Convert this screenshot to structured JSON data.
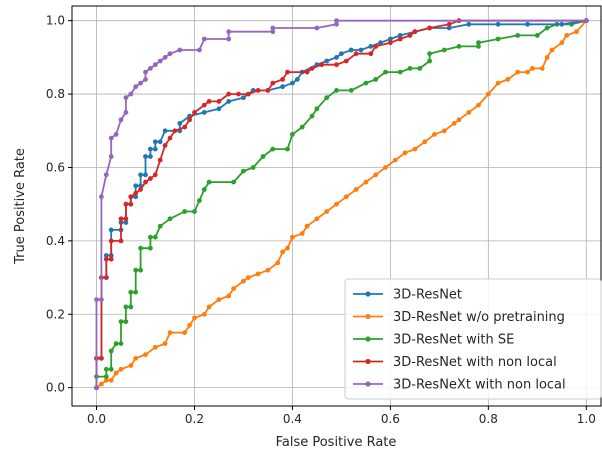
{
  "chart_data": {
    "type": "line",
    "title": "",
    "xlabel": "False Positive Rate",
    "ylabel": "True Positive Rate",
    "xlim": [
      -0.05,
      1.03
    ],
    "ylim": [
      -0.05,
      1.04
    ],
    "xticks": [
      0.0,
      0.2,
      0.4,
      0.6,
      0.8,
      1.0
    ],
    "yticks": [
      0.0,
      0.2,
      0.4,
      0.6,
      0.8,
      1.0
    ],
    "tick_labels_x": [
      "0.0",
      "0.2",
      "0.4",
      "0.6",
      "0.8",
      "1.0"
    ],
    "tick_labels_y": [
      "0.0",
      "0.2",
      "0.4",
      "0.6",
      "0.8",
      "1.0"
    ],
    "grid": true,
    "legend_position": "lower-right",
    "series": [
      {
        "name": "3D-ResNet",
        "color": "#1f77b4",
        "points": [
          [
            0,
            0
          ],
          [
            0,
            0.08
          ],
          [
            0.01,
            0.08
          ],
          [
            0.01,
            0.3
          ],
          [
            0.02,
            0.3
          ],
          [
            0.02,
            0.36
          ],
          [
            0.03,
            0.36
          ],
          [
            0.03,
            0.43
          ],
          [
            0.05,
            0.43
          ],
          [
            0.05,
            0.45
          ],
          [
            0.06,
            0.45
          ],
          [
            0.06,
            0.5
          ],
          [
            0.07,
            0.5
          ],
          [
            0.07,
            0.52
          ],
          [
            0.08,
            0.52
          ],
          [
            0.08,
            0.55
          ],
          [
            0.09,
            0.55
          ],
          [
            0.09,
            0.58
          ],
          [
            0.1,
            0.58
          ],
          [
            0.1,
            0.63
          ],
          [
            0.11,
            0.63
          ],
          [
            0.11,
            0.65
          ],
          [
            0.12,
            0.65
          ],
          [
            0.12,
            0.67
          ],
          [
            0.13,
            0.67
          ],
          [
            0.14,
            0.7
          ],
          [
            0.17,
            0.7
          ],
          [
            0.17,
            0.72
          ],
          [
            0.19,
            0.74
          ],
          [
            0.22,
            0.75
          ],
          [
            0.25,
            0.76
          ],
          [
            0.27,
            0.78
          ],
          [
            0.3,
            0.79
          ],
          [
            0.32,
            0.81
          ],
          [
            0.35,
            0.81
          ],
          [
            0.38,
            0.82
          ],
          [
            0.4,
            0.83
          ],
          [
            0.41,
            0.84
          ],
          [
            0.42,
            0.86
          ],
          [
            0.45,
            0.88
          ],
          [
            0.47,
            0.89
          ],
          [
            0.49,
            0.9
          ],
          [
            0.5,
            0.91
          ],
          [
            0.52,
            0.92
          ],
          [
            0.54,
            0.92
          ],
          [
            0.56,
            0.93
          ],
          [
            0.58,
            0.94
          ],
          [
            0.6,
            0.95
          ],
          [
            0.62,
            0.96
          ],
          [
            0.65,
            0.97
          ],
          [
            0.68,
            0.98
          ],
          [
            0.72,
            0.98
          ],
          [
            0.76,
            0.99
          ],
          [
            0.82,
            0.99
          ],
          [
            0.88,
            0.99
          ],
          [
            0.95,
            0.99
          ],
          [
            1,
            1
          ]
        ]
      },
      {
        "name": "3D-ResNet w/o pretraining",
        "color": "#ff7f0e",
        "points": [
          [
            0,
            0
          ],
          [
            0.01,
            0.01
          ],
          [
            0.02,
            0.02
          ],
          [
            0.03,
            0.02
          ],
          [
            0.04,
            0.04
          ],
          [
            0.05,
            0.05
          ],
          [
            0.07,
            0.06
          ],
          [
            0.08,
            0.08
          ],
          [
            0.1,
            0.09
          ],
          [
            0.12,
            0.11
          ],
          [
            0.14,
            0.12
          ],
          [
            0.15,
            0.15
          ],
          [
            0.18,
            0.15
          ],
          [
            0.19,
            0.17
          ],
          [
            0.2,
            0.19
          ],
          [
            0.22,
            0.2
          ],
          [
            0.23,
            0.22
          ],
          [
            0.25,
            0.24
          ],
          [
            0.27,
            0.25
          ],
          [
            0.28,
            0.27
          ],
          [
            0.3,
            0.29
          ],
          [
            0.31,
            0.3
          ],
          [
            0.33,
            0.31
          ],
          [
            0.35,
            0.32
          ],
          [
            0.37,
            0.34
          ],
          [
            0.38,
            0.37
          ],
          [
            0.39,
            0.38
          ],
          [
            0.4,
            0.41
          ],
          [
            0.42,
            0.42
          ],
          [
            0.43,
            0.44
          ],
          [
            0.45,
            0.46
          ],
          [
            0.47,
            0.48
          ],
          [
            0.49,
            0.5
          ],
          [
            0.51,
            0.52
          ],
          [
            0.53,
            0.54
          ],
          [
            0.55,
            0.56
          ],
          [
            0.57,
            0.58
          ],
          [
            0.59,
            0.6
          ],
          [
            0.61,
            0.62
          ],
          [
            0.63,
            0.64
          ],
          [
            0.65,
            0.65
          ],
          [
            0.67,
            0.67
          ],
          [
            0.69,
            0.69
          ],
          [
            0.71,
            0.7
          ],
          [
            0.73,
            0.72
          ],
          [
            0.74,
            0.73
          ],
          [
            0.76,
            0.75
          ],
          [
            0.78,
            0.77
          ],
          [
            0.8,
            0.8
          ],
          [
            0.82,
            0.83
          ],
          [
            0.84,
            0.84
          ],
          [
            0.86,
            0.86
          ],
          [
            0.88,
            0.86
          ],
          [
            0.89,
            0.87
          ],
          [
            0.91,
            0.87
          ],
          [
            0.92,
            0.9
          ],
          [
            0.93,
            0.92
          ],
          [
            0.95,
            0.94
          ],
          [
            0.96,
            0.96
          ],
          [
            0.98,
            0.97
          ],
          [
            1,
            1
          ]
        ]
      },
      {
        "name": "3D-ResNet with SE",
        "color": "#2ca02c",
        "points": [
          [
            0,
            0
          ],
          [
            0,
            0.03
          ],
          [
            0.02,
            0.03
          ],
          [
            0.02,
            0.05
          ],
          [
            0.03,
            0.05
          ],
          [
            0.03,
            0.1
          ],
          [
            0.04,
            0.12
          ],
          [
            0.05,
            0.12
          ],
          [
            0.05,
            0.18
          ],
          [
            0.06,
            0.18
          ],
          [
            0.06,
            0.22
          ],
          [
            0.07,
            0.22
          ],
          [
            0.07,
            0.26
          ],
          [
            0.08,
            0.26
          ],
          [
            0.08,
            0.32
          ],
          [
            0.09,
            0.32
          ],
          [
            0.09,
            0.38
          ],
          [
            0.11,
            0.38
          ],
          [
            0.11,
            0.41
          ],
          [
            0.12,
            0.41
          ],
          [
            0.13,
            0.44
          ],
          [
            0.15,
            0.46
          ],
          [
            0.18,
            0.48
          ],
          [
            0.2,
            0.48
          ],
          [
            0.21,
            0.51
          ],
          [
            0.22,
            0.54
          ],
          [
            0.23,
            0.56
          ],
          [
            0.28,
            0.56
          ],
          [
            0.3,
            0.59
          ],
          [
            0.32,
            0.6
          ],
          [
            0.34,
            0.63
          ],
          [
            0.36,
            0.65
          ],
          [
            0.39,
            0.65
          ],
          [
            0.4,
            0.69
          ],
          [
            0.42,
            0.71
          ],
          [
            0.44,
            0.74
          ],
          [
            0.45,
            0.76
          ],
          [
            0.47,
            0.79
          ],
          [
            0.49,
            0.81
          ],
          [
            0.52,
            0.81
          ],
          [
            0.55,
            0.83
          ],
          [
            0.57,
            0.84
          ],
          [
            0.59,
            0.86
          ],
          [
            0.62,
            0.86
          ],
          [
            0.64,
            0.87
          ],
          [
            0.66,
            0.87
          ],
          [
            0.68,
            0.89
          ],
          [
            0.68,
            0.91
          ],
          [
            0.71,
            0.92
          ],
          [
            0.74,
            0.93
          ],
          [
            0.78,
            0.93
          ],
          [
            0.78,
            0.94
          ],
          [
            0.82,
            0.95
          ],
          [
            0.86,
            0.96
          ],
          [
            0.9,
            0.96
          ],
          [
            0.92,
            0.98
          ],
          [
            0.94,
            0.99
          ],
          [
            0.97,
            0.99
          ],
          [
            1,
            1
          ]
        ]
      },
      {
        "name": "3D-ResNet with non local",
        "color": "#d62728",
        "points": [
          [
            0,
            0
          ],
          [
            0,
            0.08
          ],
          [
            0.01,
            0.08
          ],
          [
            0.01,
            0.3
          ],
          [
            0.02,
            0.3
          ],
          [
            0.02,
            0.35
          ],
          [
            0.03,
            0.35
          ],
          [
            0.03,
            0.4
          ],
          [
            0.05,
            0.4
          ],
          [
            0.05,
            0.46
          ],
          [
            0.06,
            0.46
          ],
          [
            0.06,
            0.5
          ],
          [
            0.07,
            0.5
          ],
          [
            0.07,
            0.52
          ],
          [
            0.08,
            0.53
          ],
          [
            0.09,
            0.54
          ],
          [
            0.1,
            0.56
          ],
          [
            0.11,
            0.57
          ],
          [
            0.12,
            0.58
          ],
          [
            0.13,
            0.62
          ],
          [
            0.14,
            0.66
          ],
          [
            0.15,
            0.68
          ],
          [
            0.16,
            0.7
          ],
          [
            0.18,
            0.71
          ],
          [
            0.19,
            0.73
          ],
          [
            0.2,
            0.75
          ],
          [
            0.22,
            0.77
          ],
          [
            0.23,
            0.78
          ],
          [
            0.25,
            0.78
          ],
          [
            0.27,
            0.8
          ],
          [
            0.29,
            0.8
          ],
          [
            0.31,
            0.8
          ],
          [
            0.33,
            0.81
          ],
          [
            0.35,
            0.81
          ],
          [
            0.36,
            0.83
          ],
          [
            0.38,
            0.84
          ],
          [
            0.39,
            0.86
          ],
          [
            0.43,
            0.86
          ],
          [
            0.44,
            0.87
          ],
          [
            0.46,
            0.88
          ],
          [
            0.49,
            0.88
          ],
          [
            0.51,
            0.89
          ],
          [
            0.53,
            0.91
          ],
          [
            0.56,
            0.91
          ],
          [
            0.57,
            0.93
          ],
          [
            0.6,
            0.94
          ],
          [
            0.62,
            0.95
          ],
          [
            0.64,
            0.96
          ],
          [
            0.65,
            0.97
          ],
          [
            0.68,
            0.98
          ],
          [
            0.72,
            0.99
          ],
          [
            0.74,
            1
          ],
          [
            1,
            1
          ]
        ]
      },
      {
        "name": "3D-ResNeXt with non local",
        "color": "#9467bd",
        "points": [
          [
            0,
            0
          ],
          [
            0,
            0.24
          ],
          [
            0.01,
            0.24
          ],
          [
            0.01,
            0.52
          ],
          [
            0.02,
            0.58
          ],
          [
            0.03,
            0.63
          ],
          [
            0.03,
            0.68
          ],
          [
            0.04,
            0.69
          ],
          [
            0.05,
            0.73
          ],
          [
            0.06,
            0.75
          ],
          [
            0.06,
            0.79
          ],
          [
            0.07,
            0.8
          ],
          [
            0.08,
            0.82
          ],
          [
            0.09,
            0.83
          ],
          [
            0.1,
            0.84
          ],
          [
            0.1,
            0.86
          ],
          [
            0.11,
            0.87
          ],
          [
            0.12,
            0.88
          ],
          [
            0.13,
            0.89
          ],
          [
            0.14,
            0.9
          ],
          [
            0.15,
            0.91
          ],
          [
            0.17,
            0.92
          ],
          [
            0.21,
            0.92
          ],
          [
            0.22,
            0.95
          ],
          [
            0.27,
            0.95
          ],
          [
            0.27,
            0.97
          ],
          [
            0.36,
            0.97
          ],
          [
            0.36,
            0.98
          ],
          [
            0.45,
            0.98
          ],
          [
            0.49,
            0.99
          ],
          [
            0.49,
            1
          ],
          [
            1,
            1
          ]
        ]
      }
    ]
  }
}
